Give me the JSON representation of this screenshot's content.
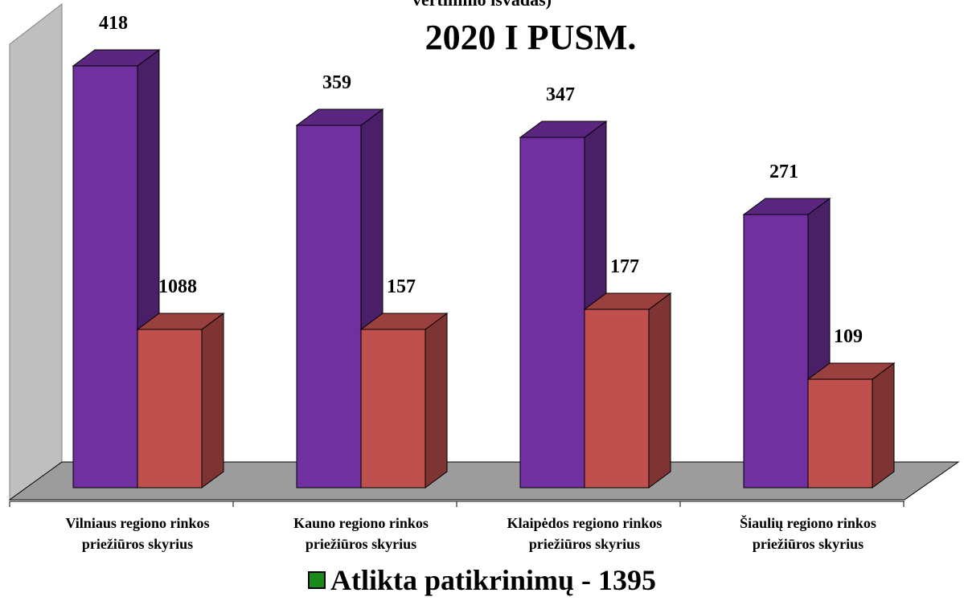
{
  "chart_data": {
    "type": "bar",
    "title_partial": "vertinimo išvadas)",
    "title": "2020 I PUSM.",
    "categories": [
      [
        "Vilniaus regiono rinkos",
        "priežiūros skyrius"
      ],
      [
        "Kauno regiono rinkos",
        "priežiūros skyrius"
      ],
      [
        "Klaipėdos regiono rinkos",
        "priežiūros skyrius"
      ],
      [
        "Šiaulių regiono rinkos",
        "priežiūros skyrius"
      ]
    ],
    "series": [
      {
        "values": [
          418,
          359,
          347,
          271
        ],
        "color": "#7030a0"
      },
      {
        "values": [
          1088,
          157,
          177,
          109
        ],
        "color": "#c0504d"
      }
    ],
    "legend": {
      "label": "Atlikta patikrinimų  - 1395",
      "color": "#1a8a1a",
      "position": "bottom"
    },
    "grid": false
  }
}
